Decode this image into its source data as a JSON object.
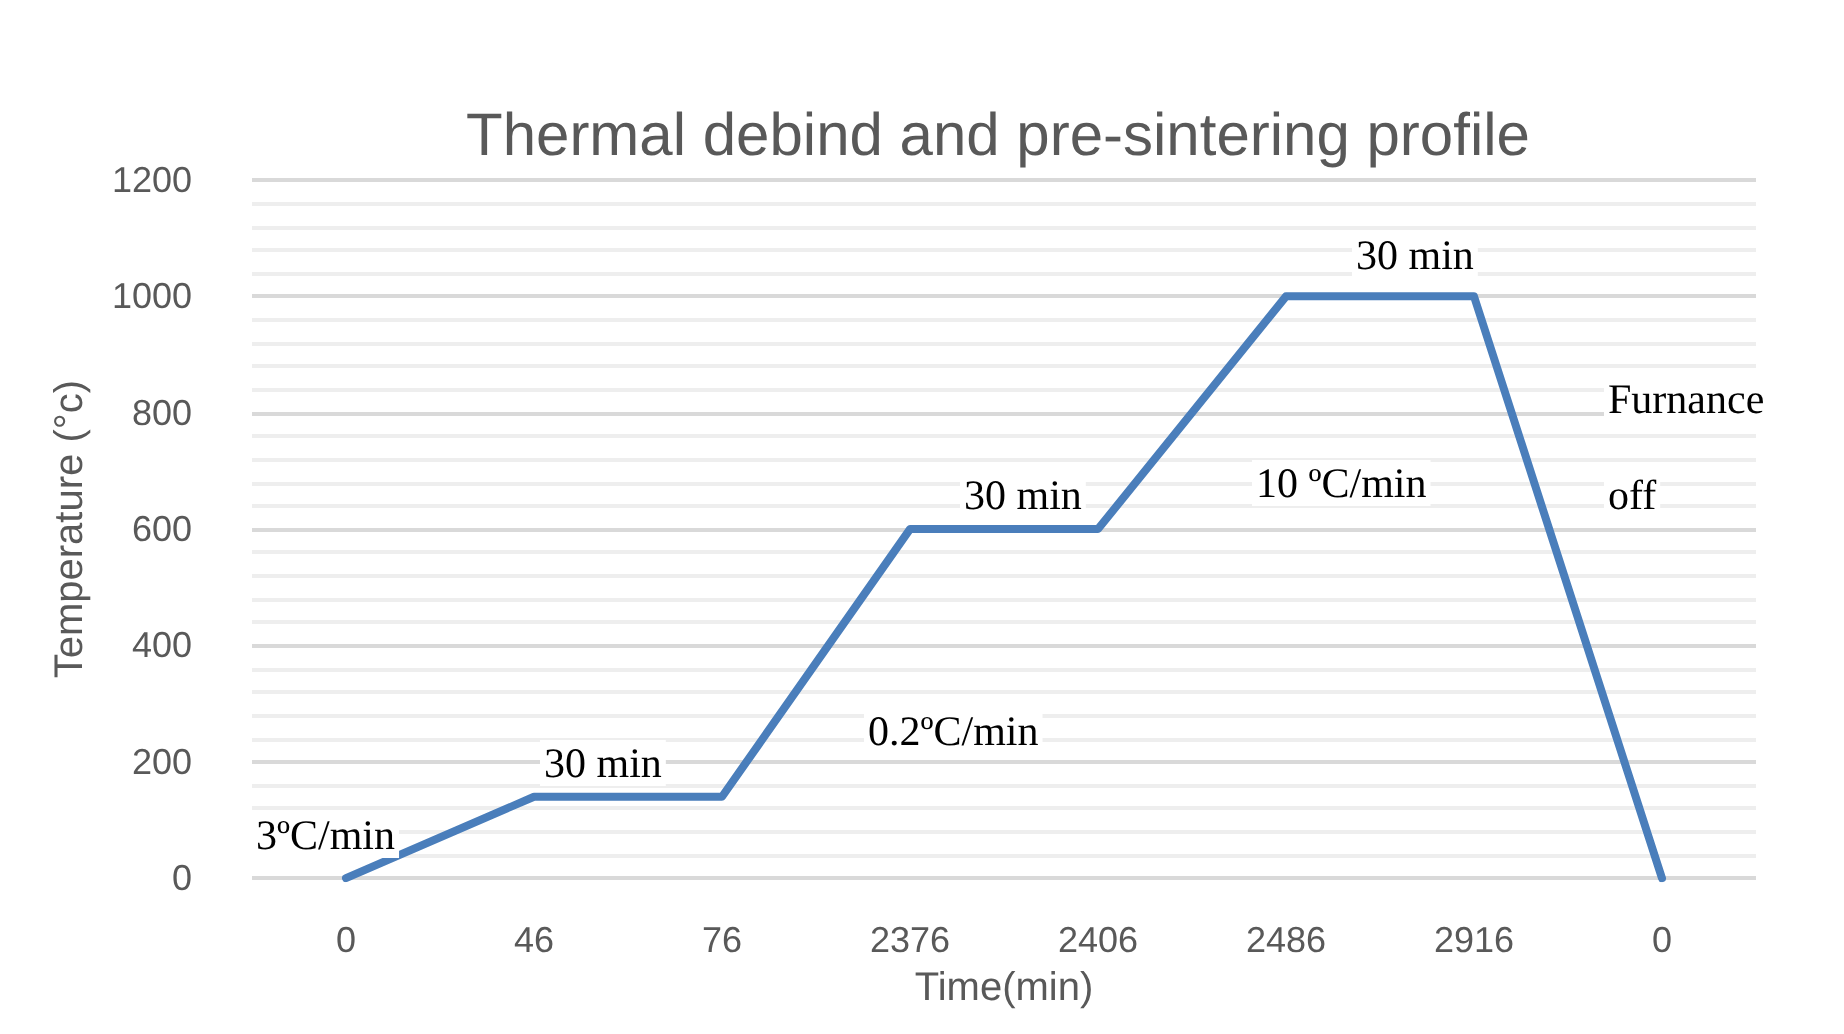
{
  "chart_data": {
    "type": "line",
    "title": "Thermal debind and pre-sintering profile",
    "xlabel": "Time(min)",
    "ylabel": "Temperature (°c)",
    "categories": [
      "0",
      "46",
      "76",
      "2376",
      "2406",
      "2486",
      "2916",
      "0"
    ],
    "series": [
      {
        "color": "#4a7ebb",
        "values": [
          0,
          140,
          140,
          600,
          600,
          1000,
          1000,
          0
        ]
      }
    ],
    "ylim": [
      0,
      1200
    ],
    "yticks": [
      0,
      200,
      400,
      600,
      800,
      1000,
      1200
    ],
    "grid": "y",
    "marker": "none",
    "line_style": "solid",
    "annotations": [
      "3ºC/min",
      "30 min",
      "0.2ºC/min",
      "30 min",
      "10 ºC/min",
      "30 min",
      "Furnance",
      "off"
    ]
  }
}
